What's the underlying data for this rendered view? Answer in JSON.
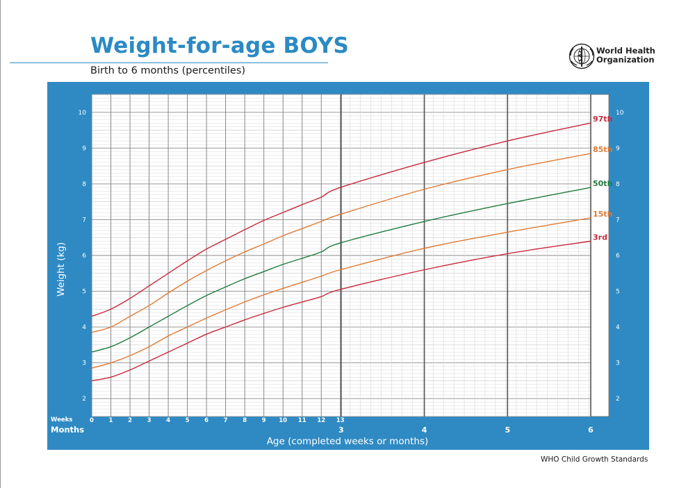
{
  "header": {
    "title": "Weight-for-age BOYS",
    "subtitle": "Birth to 6 months (percentiles)"
  },
  "logo": {
    "line1": "World Health",
    "line2": "Organization"
  },
  "axis_text": {
    "ylabel": "Weight (kg)",
    "xlabel": "Age (completed weeks or months)",
    "weeks_label": "Weeks",
    "months_label": "Months"
  },
  "footer": {
    "text": "WHO Child Growth Standards"
  },
  "colors": {
    "panel": "#2f8ac3",
    "title": "#2b8ac4",
    "p3": "#c8283c",
    "p15": "#e07a33",
    "p50": "#1f7a3c",
    "p85": "#e07a33",
    "p97": "#c8283c"
  },
  "chart_data": {
    "type": "line",
    "title": "Weight-for-age BOYS",
    "subtitle": "Birth to 6 months (percentiles)",
    "xlabel": "Age (completed weeks or months)",
    "ylabel": "Weight (kg)",
    "x_unit": "weeks",
    "xlim": [
      0,
      26.09
    ],
    "ylim": [
      1.5,
      10.5
    ],
    "grid": true,
    "y_ticks": [
      "2",
      "3",
      "4",
      "5",
      "6",
      "7",
      "8",
      "9",
      "10"
    ],
    "week_ticks": [
      "0",
      "1",
      "2",
      "3",
      "4",
      "5",
      "6",
      "7",
      "8",
      "9",
      "10",
      "11",
      "12",
      "13"
    ],
    "month_ticks": [
      {
        "label": "3",
        "weeks": 13.04
      },
      {
        "label": "4",
        "weeks": 17.39
      },
      {
        "label": "5",
        "weeks": 21.74
      },
      {
        "label": "6",
        "weeks": 26.09
      }
    ],
    "x": [
      0,
      1,
      2,
      3,
      4,
      5,
      6,
      7,
      8,
      9,
      10,
      11,
      12,
      13,
      17.39,
      21.74,
      26.09
    ],
    "series": [
      {
        "name": "3rd",
        "color_key": "p3",
        "values": [
          2.5,
          2.6,
          2.8,
          3.05,
          3.3,
          3.55,
          3.8,
          4.0,
          4.2,
          4.38,
          4.55,
          4.7,
          4.85,
          5.05,
          5.6,
          6.05,
          6.4
        ]
      },
      {
        "name": "15th",
        "color_key": "p15",
        "values": [
          2.85,
          3.0,
          3.2,
          3.45,
          3.75,
          4.0,
          4.25,
          4.48,
          4.7,
          4.9,
          5.08,
          5.25,
          5.42,
          5.6,
          6.2,
          6.65,
          7.05
        ]
      },
      {
        "name": "50th",
        "color_key": "p50",
        "values": [
          3.3,
          3.45,
          3.7,
          4.0,
          4.3,
          4.6,
          4.88,
          5.12,
          5.35,
          5.55,
          5.75,
          5.92,
          6.1,
          6.35,
          6.95,
          7.45,
          7.9
        ]
      },
      {
        "name": "85th",
        "color_key": "p85",
        "values": [
          3.85,
          4.0,
          4.3,
          4.6,
          4.95,
          5.28,
          5.58,
          5.85,
          6.1,
          6.32,
          6.55,
          6.75,
          6.95,
          7.15,
          7.85,
          8.4,
          8.85
        ]
      },
      {
        "name": "97th",
        "color_key": "p97",
        "values": [
          4.3,
          4.5,
          4.8,
          5.15,
          5.5,
          5.85,
          6.18,
          6.45,
          6.72,
          6.98,
          7.2,
          7.42,
          7.63,
          7.9,
          8.6,
          9.2,
          9.7
        ]
      }
    ]
  }
}
